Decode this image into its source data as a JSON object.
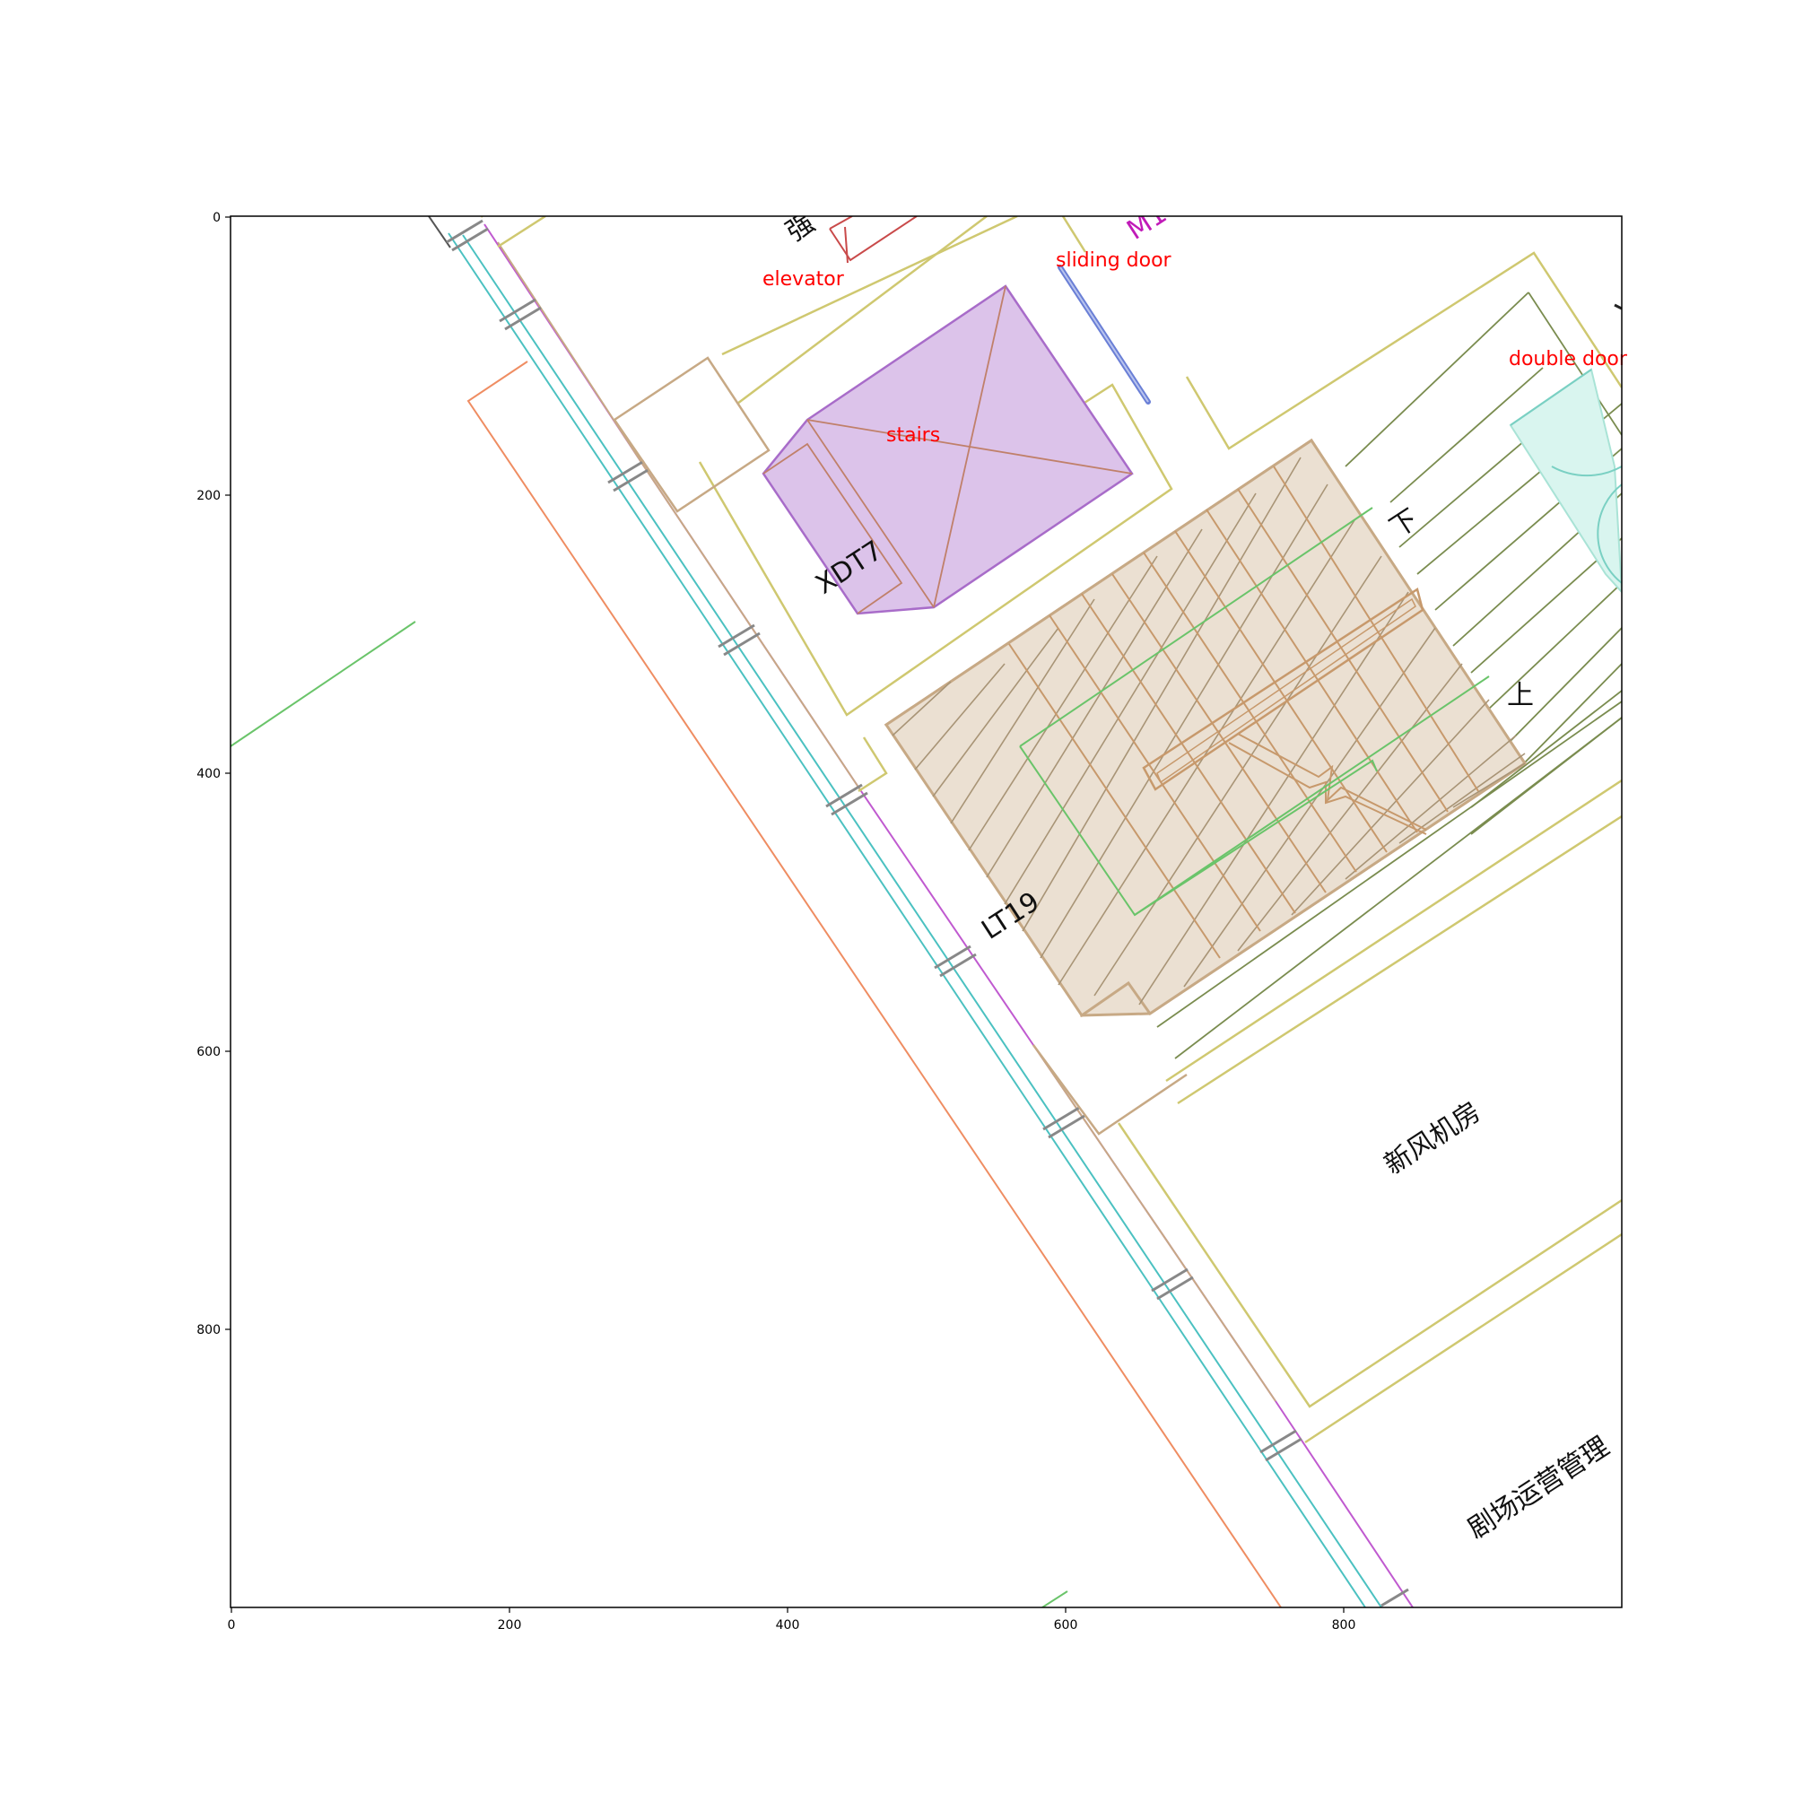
{
  "axes": {
    "x_ticks": [
      "0",
      "200",
      "400",
      "600",
      "800"
    ],
    "y_ticks": [
      "0",
      "200",
      "400",
      "600",
      "800"
    ]
  },
  "annotations": {
    "elevator": "elevator",
    "sliding_door": "sliding door",
    "double_door": "double door",
    "stairs": "stairs"
  },
  "room_labels": {
    "xdt7": "XDT7",
    "lt19": "LT19",
    "xinfeng": "新风机房",
    "juchang": "剧场运营管理",
    "xia": "下",
    "shang": "上",
    "qiang": "强",
    "m1": "M1"
  },
  "colors": {
    "stairs_fill": "#ebe0d2",
    "stairs_stroke": "#c7a985",
    "elevator_fill": "#dcc3ea",
    "elevator_stroke": "#a86cc9",
    "double_door_fill": "#d9f5ef",
    "sliding_door": "#6a7fd6",
    "wall_teal": "#4bc1c1",
    "wall_magenta": "#c05ad0",
    "orange_line": "#ef8d62",
    "olive_line": "#cfc870",
    "green_line": "#6ac46a",
    "annotation_text": "#ff0000",
    "m1_text": "#c01ab8"
  }
}
